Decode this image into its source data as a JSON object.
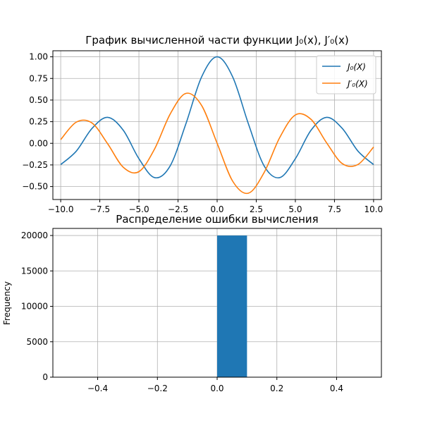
{
  "chart_data": [
    {
      "type": "line",
      "title": "График вычисленной части функции J₀(x), J′₀(x)",
      "xlim": [
        -10.5,
        10.5
      ],
      "ylim": [
        -0.65,
        1.07
      ],
      "grid": true,
      "legend_position": "top-right",
      "x_ticks": [
        -10.0,
        -7.5,
        -5.0,
        -2.5,
        0.0,
        2.5,
        5.0,
        7.5,
        10.0
      ],
      "x_tick_labels": [
        "−10.0",
        "−7.5",
        "−5.0",
        "−2.5",
        "0.0",
        "2.5",
        "5.0",
        "7.5",
        "10.0"
      ],
      "y_ticks": [
        -0.5,
        -0.25,
        0.0,
        0.25,
        0.5,
        0.75,
        1.0
      ],
      "y_tick_labels": [
        "−0.50",
        "−0.25",
        "0.00",
        "0.25",
        "0.50",
        "0.75",
        "1.00"
      ],
      "x": [
        -10,
        -9,
        -8,
        -7,
        -6,
        -5,
        -4,
        -3,
        -2,
        -1,
        0,
        1,
        2,
        3,
        4,
        5,
        6,
        7,
        8,
        9,
        10
      ],
      "series": [
        {
          "name": "J₀(X)",
          "color": "#1f77b4",
          "values": [
            -0.246,
            -0.09,
            0.172,
            0.3,
            0.151,
            -0.178,
            -0.397,
            -0.26,
            0.224,
            0.765,
            1.0,
            0.765,
            0.224,
            -0.26,
            -0.397,
            -0.178,
            0.151,
            0.3,
            0.172,
            -0.09,
            -0.246
          ]
        },
        {
          "name": "J′₀(X)",
          "color": "#ff7f0e",
          "values": [
            0.043,
            0.245,
            0.235,
            -0.005,
            -0.277,
            -0.328,
            -0.066,
            0.339,
            0.577,
            0.44,
            0.0,
            -0.44,
            -0.577,
            -0.339,
            0.066,
            0.328,
            0.277,
            0.005,
            -0.235,
            -0.245,
            -0.043
          ]
        }
      ]
    },
    {
      "type": "bar",
      "title": "Распределение ошибки вычисления",
      "ylabel": "Frequency",
      "xlim": [
        -0.55,
        0.55
      ],
      "ylim": [
        0,
        21000
      ],
      "grid": true,
      "x_ticks": [
        -0.4,
        -0.2,
        0.0,
        0.2,
        0.4
      ],
      "x_tick_labels": [
        "−0.4",
        "−0.2",
        "0.0",
        "0.2",
        "0.4"
      ],
      "y_ticks": [
        0,
        5000,
        10000,
        15000,
        20000
      ],
      "y_tick_labels": [
        "0",
        "5000",
        "10000",
        "15000",
        "20000"
      ],
      "bins": [
        {
          "from": 0.0,
          "to": 0.1,
          "value": 20000
        }
      ],
      "color": "#1f77b4"
    }
  ]
}
